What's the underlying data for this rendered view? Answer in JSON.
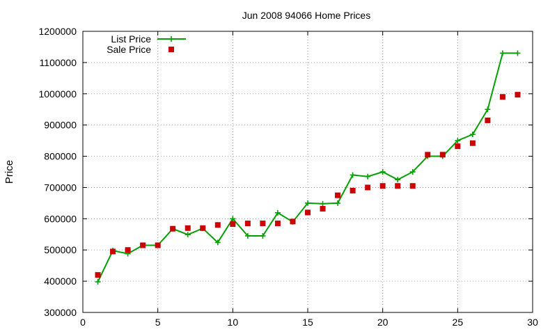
{
  "chart_data": {
    "type": "line",
    "title": "Jun 2008 94066 Home Prices",
    "xlabel": "",
    "ylabel": "Price",
    "xlim": [
      0,
      30
    ],
    "ylim": [
      300000,
      1200000
    ],
    "x_ticks": [
      0,
      5,
      10,
      15,
      20,
      25,
      30
    ],
    "y_ticks": [
      300000,
      400000,
      500000,
      600000,
      700000,
      800000,
      900000,
      1000000,
      1100000,
      1200000
    ],
    "grid": true,
    "legend_position": "top-left",
    "series": [
      {
        "name": "List Price",
        "style": "line-with-plus-markers",
        "color": "#00a000",
        "x": [
          1,
          2,
          3,
          4,
          5,
          6,
          7,
          8,
          9,
          10,
          11,
          12,
          13,
          14,
          15,
          16,
          17,
          18,
          19,
          20,
          21,
          22,
          23,
          24,
          25,
          26,
          27,
          28,
          29
        ],
        "y": [
          398000,
          498000,
          488000,
          515000,
          515000,
          568000,
          549000,
          569000,
          524000,
          600000,
          545000,
          545000,
          619000,
          590000,
          650000,
          648000,
          650000,
          740000,
          735000,
          750000,
          725000,
          750000,
          800000,
          800000,
          850000,
          870000,
          950000,
          1130000,
          1130000
        ]
      },
      {
        "name": "Sale Price",
        "style": "square-markers",
        "color": "#cc0000",
        "x": [
          1,
          2,
          3,
          4,
          5,
          6,
          7,
          8,
          9,
          10,
          11,
          12,
          13,
          14,
          15,
          16,
          17,
          18,
          19,
          20,
          21,
          22,
          23,
          24,
          25,
          26,
          27,
          28,
          29
        ],
        "y": [
          420000,
          495000,
          500000,
          515000,
          515000,
          568000,
          570000,
          570000,
          580000,
          583000,
          585000,
          585000,
          585000,
          591000,
          620000,
          632000,
          675000,
          690000,
          700000,
          705000,
          705000,
          705000,
          805000,
          805000,
          832000,
          842000,
          915000,
          990000,
          997000
        ]
      }
    ]
  }
}
